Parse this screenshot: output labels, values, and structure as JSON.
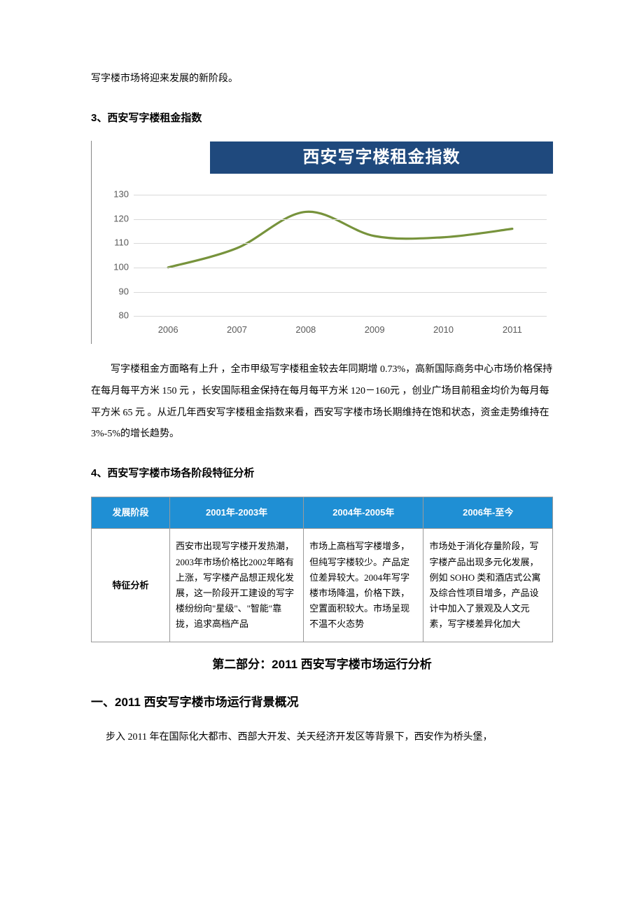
{
  "intro_line": "写字楼市场将迎来发展的新阶段。",
  "sec3_heading": "3、西安写字楼租金指数",
  "rent_chart": {
    "type": "line",
    "title": "西安写字楼租金指数",
    "title_bg": "#1f497d",
    "title_color": "#ffffff",
    "title_fontsize": 24,
    "line_color": "#77933c",
    "line_width": 3.2,
    "grid_color": "#d9d9d9",
    "label_color": "#595959",
    "label_fontsize": 13,
    "ylim": [
      80,
      135
    ],
    "yticks": [
      80,
      90,
      100,
      110,
      120,
      130
    ],
    "x_categories": [
      "2006",
      "2007",
      "2008",
      "2009",
      "2010",
      "2011"
    ],
    "values": [
      100,
      108,
      123,
      113,
      112.5,
      116
    ],
    "smooth": true
  },
  "rent_para": "写字楼租金方面略有上升 ，全市甲级写字楼租金较去年同期增 0.73%，高新国际商务中心市场价格保持在每月每平方米 150 元 ，长安国际租金保持在每月每平方米 120－160元 ，创业广场目前租金均价为每月每平方米 65 元 。从近几年西安写字楼租金指数来看，西安写字楼市场长期维持在饱和状态，资金走势维持在 3%-5%的增长趋势。",
  "sec4_heading": "4、西安写字楼市场各阶段特征分析",
  "stage_table": {
    "header_bg": "#1f8fd4",
    "header_color": "#ffffff",
    "border_color": "#9a9a9a",
    "columns": [
      "发展阶段",
      "2001年-2003年",
      "2004年-2005年",
      "2006年-至今"
    ],
    "row_label": "特征分析",
    "cells": [
      "西安市出现写字楼开发热潮，2003年市场价格比2002年略有上涨，写字楼产品想正规化发展，这一阶段开工建设的写字楼纷纷向\"星级\"、\"智能\"靠拢，追求高档产品",
      "市场上高档写字楼增多，但纯写字楼较少。产品定位差异较大。2004年写字楼市场降温，价格下跌，空置面积较大。市场呈现不温不火态势",
      "市场处于消化存量阶段，写字楼产品出现多元化发展，例如 SOHO 类和酒店式公寓及综合性项目增多，产品设计中加入了景观及人文元素，写字楼差异化加大"
    ],
    "col_widths": [
      "17%",
      "29%",
      "26%",
      "28%"
    ]
  },
  "part2_heading": "第二部分：2011 西安写字楼市场运行分析",
  "major_heading": "一、2011 西安写字楼市场运行背景概况",
  "last_para": "步入 2011 年在国际化大都市、西部大开发、关天经济开发区等背景下，西安作为桥头堡，"
}
